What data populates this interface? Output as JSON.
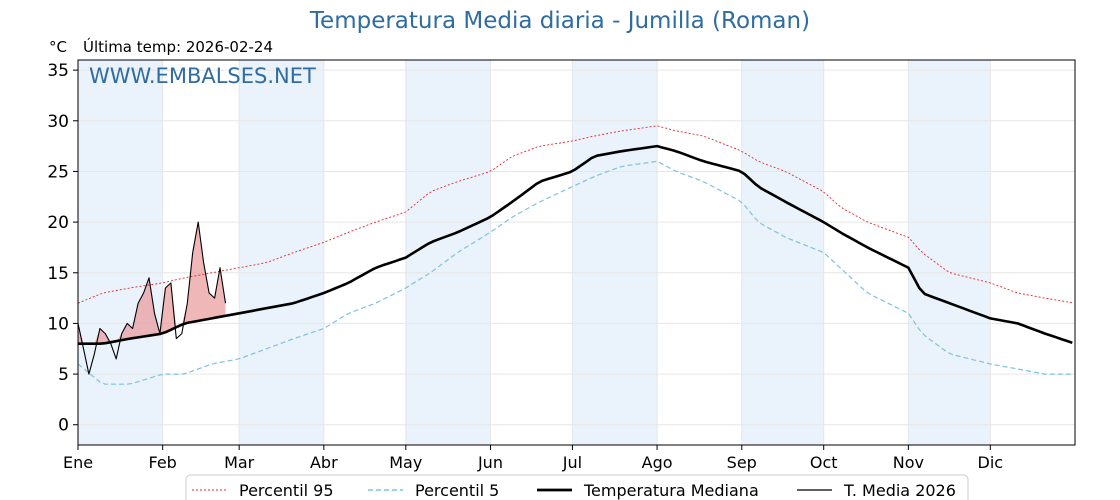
{
  "header": {
    "title": "Temperatura Media diaria - Jumilla (Roman)",
    "unit": "°C",
    "last_temp": "Última temp: 2026-02-24"
  },
  "watermark": "WWW.EMBALSES.NET",
  "colors": {
    "title": "#2f6c9f",
    "p95": "#e8262a",
    "p5": "#7ec3dc",
    "median": "#000000",
    "current": "#000000",
    "fill_above": "#e8989a",
    "band": "#eaf2fb"
  },
  "chart_data": {
    "type": "line",
    "title": "Temperatura Media diaria - Jumilla (Roman)",
    "ylabel": "°C",
    "xlim": [
      1,
      366
    ],
    "ylim": [
      -2,
      36
    ],
    "yticks": [
      0,
      5,
      10,
      15,
      20,
      25,
      30,
      35
    ],
    "grid": true,
    "legend_position": "bottom",
    "months": [
      {
        "label": "Ene",
        "day": 1
      },
      {
        "label": "Feb",
        "day": 32
      },
      {
        "label": "Mar",
        "day": 60
      },
      {
        "label": "Abr",
        "day": 91
      },
      {
        "label": "May",
        "day": 121
      },
      {
        "label": "Jun",
        "day": 152
      },
      {
        "label": "Jul",
        "day": 182
      },
      {
        "label": "Ago",
        "day": 213
      },
      {
        "label": "Sep",
        "day": 244
      },
      {
        "label": "Oct",
        "day": 274
      },
      {
        "label": "Nov",
        "day": 305
      },
      {
        "label": "Dic",
        "day": 335
      }
    ],
    "series": [
      {
        "name": "Percentil 95",
        "style": "dotted",
        "x": [
          1,
          10,
          20,
          32,
          40,
          50,
          60,
          70,
          80,
          91,
          100,
          110,
          121,
          130,
          140,
          152,
          160,
          170,
          182,
          190,
          200,
          213,
          220,
          230,
          244,
          250,
          260,
          274,
          280,
          290,
          305,
          310,
          320,
          335,
          345,
          355,
          366
        ],
        "y": [
          12,
          13,
          13.5,
          14,
          14.5,
          15,
          15.5,
          16,
          17,
          18,
          19,
          20,
          21,
          23,
          24,
          25,
          26.5,
          27.5,
          28,
          28.5,
          29,
          29.5,
          29,
          28.5,
          27,
          26,
          25,
          23,
          21.5,
          20,
          18.5,
          17,
          15,
          14,
          13,
          12.5,
          12
        ]
      },
      {
        "name": "Percentil 5",
        "style": "dashed",
        "x": [
          1,
          10,
          20,
          32,
          40,
          50,
          60,
          70,
          80,
          91,
          100,
          110,
          121,
          130,
          140,
          152,
          160,
          170,
          182,
          190,
          200,
          213,
          220,
          230,
          244,
          250,
          260,
          274,
          280,
          290,
          305,
          310,
          320,
          335,
          345,
          355,
          366
        ],
        "y": [
          6,
          4,
          4,
          5,
          5,
          6,
          6.5,
          7.5,
          8.5,
          9.5,
          11,
          12,
          13.5,
          15,
          17,
          19,
          20.5,
          22,
          23.5,
          24.5,
          25.5,
          26,
          25,
          24,
          22,
          20,
          18.5,
          17,
          15.5,
          13,
          11,
          9,
          7,
          6,
          5.5,
          5,
          5
        ]
      },
      {
        "name": "Temperatura Mediana",
        "style": "solid-thick",
        "x": [
          1,
          10,
          20,
          32,
          40,
          50,
          60,
          70,
          80,
          91,
          100,
          110,
          121,
          130,
          140,
          152,
          160,
          170,
          182,
          190,
          200,
          213,
          220,
          230,
          244,
          250,
          260,
          274,
          280,
          290,
          305,
          310,
          320,
          335,
          345,
          355,
          366
        ],
        "y": [
          8,
          8,
          8.5,
          9,
          10,
          10.5,
          11,
          11.5,
          12,
          13,
          14,
          15.5,
          16.5,
          18,
          19,
          20.5,
          22,
          24,
          25,
          26.5,
          27,
          27.5,
          27,
          26,
          25,
          23.5,
          22,
          20,
          19,
          17.5,
          15.5,
          13,
          12,
          10.5,
          10,
          9,
          8
        ]
      },
      {
        "name": "T. Media 2026",
        "style": "solid",
        "x": [
          1,
          3,
          5,
          7,
          9,
          11,
          13,
          15,
          17,
          19,
          21,
          23,
          25,
          27,
          29,
          31,
          33,
          35,
          37,
          39,
          41,
          43,
          45,
          47,
          49,
          51,
          53,
          55
        ],
        "y": [
          10,
          7.5,
          5,
          7,
          9.5,
          9,
          8,
          6.5,
          9,
          10,
          9.5,
          12,
          13,
          14.5,
          11,
          9,
          13.5,
          14,
          8.5,
          9,
          12,
          17,
          20,
          16,
          13,
          12.5,
          15.5,
          12
        ]
      }
    ]
  },
  "legend": [
    {
      "label": "Percentil 95"
    },
    {
      "label": "Percentil 5"
    },
    {
      "label": "Temperatura Mediana"
    },
    {
      "label": "T. Media 2026"
    }
  ]
}
